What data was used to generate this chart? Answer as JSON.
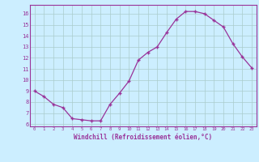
{
  "x": [
    0,
    1,
    2,
    3,
    4,
    5,
    6,
    7,
    8,
    9,
    10,
    11,
    12,
    13,
    14,
    15,
    16,
    17,
    18,
    19,
    20,
    21,
    22,
    23
  ],
  "y": [
    9.0,
    8.5,
    7.8,
    7.5,
    6.5,
    6.4,
    6.3,
    6.3,
    7.8,
    8.8,
    9.9,
    11.8,
    12.5,
    13.0,
    14.3,
    15.5,
    16.2,
    16.2,
    16.0,
    15.4,
    14.8,
    13.3,
    12.1,
    11.1
  ],
  "line_color": "#993399",
  "marker": "+",
  "marker_size": 3.5,
  "linewidth": 0.9,
  "bg_color": "#cceeff",
  "grid_color": "#aacccc",
  "xlabel": "Windchill (Refroidissement éolien,°C)",
  "xlabel_color": "#993399",
  "tick_color": "#993399",
  "axis_color": "#993399",
  "xlim": [
    -0.5,
    23.5
  ],
  "ylim": [
    5.8,
    16.8
  ],
  "yticks": [
    6,
    7,
    8,
    9,
    10,
    11,
    12,
    13,
    14,
    15,
    16
  ],
  "xticks": [
    0,
    1,
    2,
    3,
    4,
    5,
    6,
    7,
    8,
    9,
    10,
    11,
    12,
    13,
    14,
    15,
    16,
    17,
    18,
    19,
    20,
    21,
    22,
    23
  ]
}
